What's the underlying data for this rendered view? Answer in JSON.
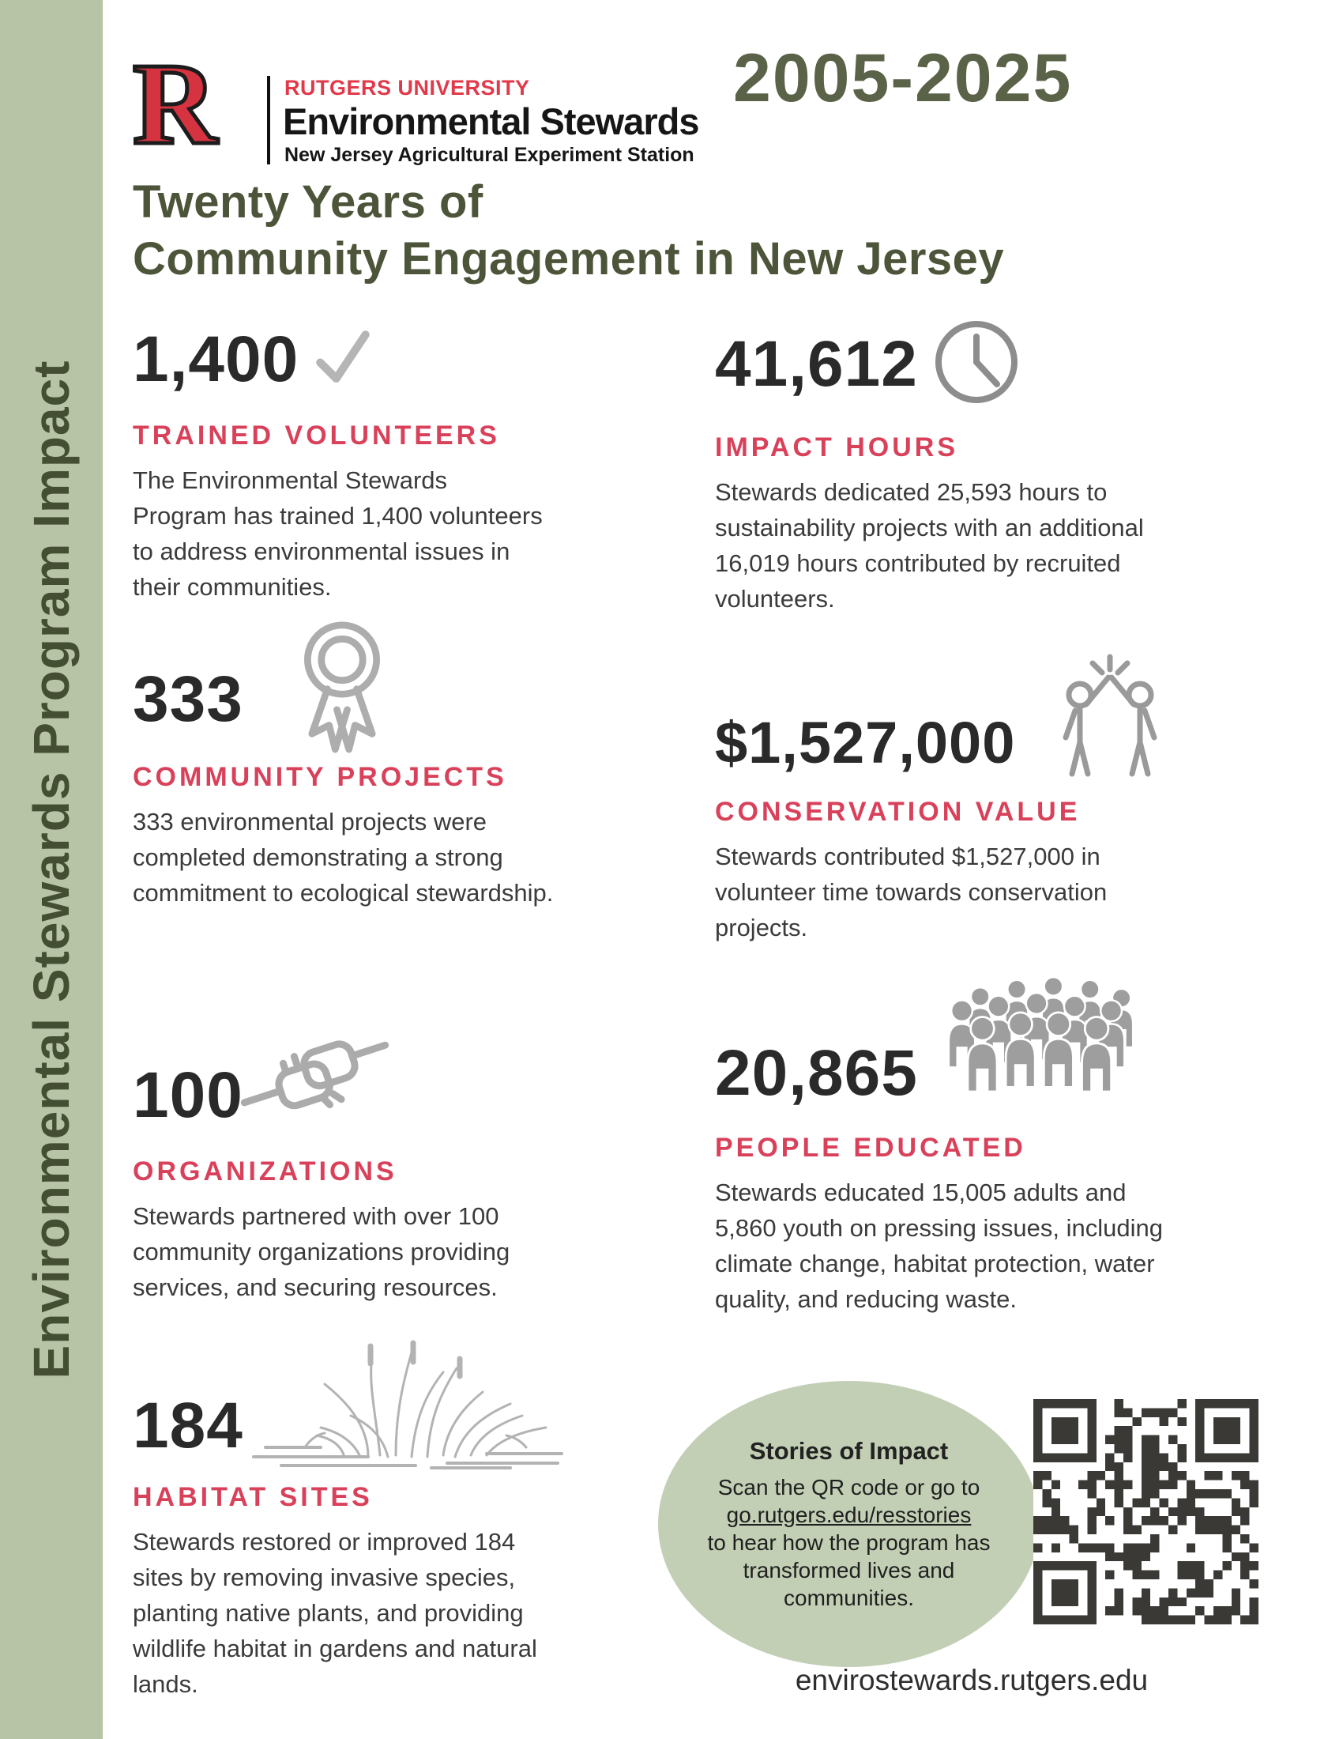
{
  "colors": {
    "sidebar_green": "#b7c4a6",
    "olive_text": "#4c5539",
    "years_olive": "#5a6247",
    "accent_red": "#d9415a",
    "rutgers_red": "#d5333f",
    "number_dark": "#2a2a2a",
    "icon_gray": "#a9a9a9",
    "oval_green": "#c2cfb4"
  },
  "sidebar": {
    "label": "Environmental Stewards Program Impact"
  },
  "header": {
    "logo_letter": "R",
    "university": "RUTGERS UNIVERSITY",
    "program": "Environmental Stewards",
    "station": "New Jersey Agricultural Experiment Station",
    "years": "2005-2025"
  },
  "title": {
    "line1": "Twenty Years of",
    "line2": "Community Engagement in New Jersey"
  },
  "stats": [
    {
      "value": "1,400",
      "icon": "checkmark-icon",
      "label": "TRAINED VOLUNTEERS",
      "description": "The Environmental Stewards Program has trained 1,400 volunteers to address environmental issues in their communities."
    },
    {
      "value": "41,612",
      "icon": "clock-icon",
      "label": "IMPACT HOURS",
      "description": "Stewards dedicated 25,593 hours to sustainability projects with an additional 16,019 hours contributed by recruited volunteers."
    },
    {
      "value": "333",
      "icon": "award-ribbon-icon",
      "label": "COMMUNITY PROJECTS",
      "description": "333 environmental projects were completed demonstrating a strong commitment to ecological stewardship."
    },
    {
      "value": "$1,527,000",
      "icon": "high-five-icon",
      "label": "CONSERVATION VALUE",
      "description": "Stewards contributed $1,527,000 in volunteer time towards conservation projects."
    },
    {
      "value": "100",
      "icon": "handshake-icon",
      "label": "ORGANIZATIONS",
      "description": "Stewards partnered with over 100 community organizations providing services, and securing resources."
    },
    {
      "value": "20,865",
      "icon": "crowd-icon",
      "label": "PEOPLE EDUCATED",
      "description": "Stewards educated 15,005 adults and 5,860 youth on pressing issues, including climate change, habitat protection, water quality, and reducing waste."
    },
    {
      "value": "184",
      "icon": "grass-icon",
      "label": "HABITAT SITES",
      "description": "Stewards restored or improved 184 sites by removing invasive species, planting native plants, and providing wildlife habitat in gardens and natural lands."
    }
  ],
  "stories": {
    "title": "Stories of Impact",
    "text_before": "Scan the QR code or go to",
    "link": "go.rutgers.edu/resstories",
    "text_after": "to hear how the program has transformed lives and communities."
  },
  "footer": {
    "website": "envirostewards.rutgers.edu"
  }
}
